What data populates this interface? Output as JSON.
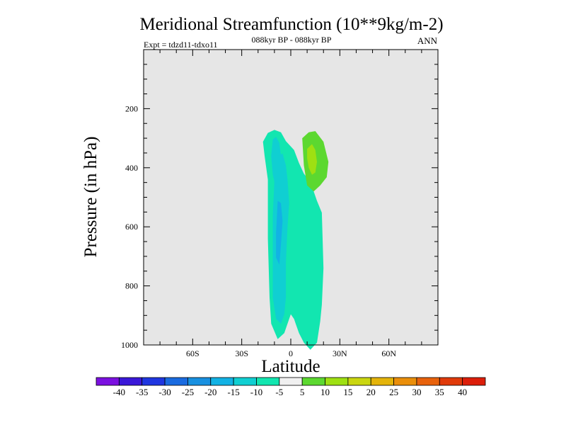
{
  "chart_data": {
    "type": "contour",
    "title": "Meridional Streamfunction (10**9kg/m-2)",
    "subtitle_center": "088kyr BP - 088kyr BP",
    "subtitle_left": "Expt = tdzd11-tdxo11",
    "subtitle_right": "ANN",
    "xlabel": "Latitude",
    "ylabel": "Pressure (in hPa)",
    "xlim": [
      -90,
      90
    ],
    "ylim": [
      1000,
      0
    ],
    "x_ticks": [
      {
        "value": -60,
        "label": "60S"
      },
      {
        "value": -30,
        "label": "30S"
      },
      {
        "value": 0,
        "label": "0"
      },
      {
        "value": 30,
        "label": "30N"
      },
      {
        "value": 60,
        "label": "60N"
      }
    ],
    "y_ticks": [
      {
        "value": 200,
        "label": "200"
      },
      {
        "value": 400,
        "label": "400"
      },
      {
        "value": 600,
        "label": "600"
      },
      {
        "value": 800,
        "label": "800"
      },
      {
        "value": 1000,
        "label": "1000"
      }
    ],
    "background_color": "#e6e6e6",
    "colorbar": {
      "levels": [
        -40,
        -35,
        -30,
        -25,
        -20,
        -15,
        -10,
        -5,
        5,
        10,
        15,
        20,
        25,
        30,
        35,
        40
      ],
      "colors": [
        "#7b10e0",
        "#3a18d8",
        "#1f36e0",
        "#1a6be0",
        "#1890e0",
        "#12b2e4",
        "#10cfd2",
        "#12e6b0",
        "#f0f0f0",
        "#5cd830",
        "#9ee012",
        "#cad610",
        "#e4b40a",
        "#ea8e0a",
        "#e8620c",
        "#e03a0a",
        "#dc1e0a"
      ]
    },
    "regions": [
      {
        "name": "negative-band-outer",
        "level": "-10 to -5",
        "color": "#12e6b0",
        "points": [
          [
            -14,
            705
          ],
          [
            -10,
            680
          ],
          [
            -6,
            700
          ],
          [
            -3,
            775
          ],
          [
            2,
            850
          ],
          [
            5,
            960
          ],
          [
            8,
            1050
          ],
          [
            12,
            1120
          ],
          [
            16,
            1280
          ],
          [
            19,
            1380
          ],
          [
            20,
            1850
          ],
          [
            19,
            2160
          ],
          [
            18,
            2300
          ],
          [
            16,
            2480
          ],
          [
            12,
            2540
          ],
          [
            8,
            2480
          ],
          [
            5,
            2400
          ],
          [
            3,
            2320
          ],
          [
            2,
            2280
          ],
          [
            0,
            2240
          ],
          [
            -4,
            2400
          ],
          [
            -8,
            2450
          ],
          [
            -12,
            2320
          ],
          [
            -13,
            2100
          ],
          [
            -14,
            1600
          ],
          [
            -14,
            1100
          ],
          [
            -16,
            900
          ],
          [
            -17,
            780
          ]
        ]
      },
      {
        "name": "negative-core-upper",
        "level": "-15 to -10",
        "color": "#10cfd2",
        "points": [
          [
            -11,
            760
          ],
          [
            -9,
            740
          ],
          [
            -7,
            790
          ],
          [
            -6,
            900
          ],
          [
            -5,
            1000
          ],
          [
            -4,
            1100
          ],
          [
            -4,
            1190
          ],
          [
            -6,
            1210
          ],
          [
            -9,
            1180
          ],
          [
            -11,
            1060
          ],
          [
            -12,
            900
          ]
        ]
      },
      {
        "name": "negative-core-main",
        "level": "-15 to -10",
        "color": "#10cfd2",
        "points": [
          [
            -8,
            900
          ],
          [
            -5,
            880
          ],
          [
            -3,
            980
          ],
          [
            -2,
            1100
          ],
          [
            -1,
            1300
          ],
          [
            -2,
            1500
          ],
          [
            -3,
            1800
          ],
          [
            -3,
            2100
          ],
          [
            -4,
            2240
          ],
          [
            -6,
            2320
          ],
          [
            -9,
            2280
          ],
          [
            -11,
            2100
          ],
          [
            -11,
            1800
          ],
          [
            -11,
            1400
          ],
          [
            -10,
            1100
          ]
        ]
      },
      {
        "name": "negative-core-deep",
        "level": "-20 to -15",
        "color": "#12b2e4",
        "points": [
          [
            -8,
            1280
          ],
          [
            -6,
            1300
          ],
          [
            -5,
            1450
          ],
          [
            -6,
            1650
          ],
          [
            -7,
            1820
          ],
          [
            -9,
            1760
          ],
          [
            -9,
            1550
          ]
        ]
      },
      {
        "name": "positive-cell",
        "level": "5 to 10",
        "color": "#5cd830",
        "points": [
          [
            7,
            750
          ],
          [
            11,
            700
          ],
          [
            15,
            690
          ],
          [
            20,
            780
          ],
          [
            23,
            950
          ],
          [
            22,
            1080
          ],
          [
            18,
            1150
          ],
          [
            14,
            1200
          ],
          [
            10,
            1150
          ],
          [
            8,
            980
          ]
        ]
      },
      {
        "name": "positive-cell-core",
        "level": "10 to 15",
        "color": "#9ee012",
        "points": [
          [
            10,
            840
          ],
          [
            13,
            800
          ],
          [
            15,
            850
          ],
          [
            16,
            950
          ],
          [
            15,
            1040
          ],
          [
            13,
            1060
          ],
          [
            11,
            1000
          ],
          [
            10,
            920
          ]
        ]
      }
    ]
  }
}
